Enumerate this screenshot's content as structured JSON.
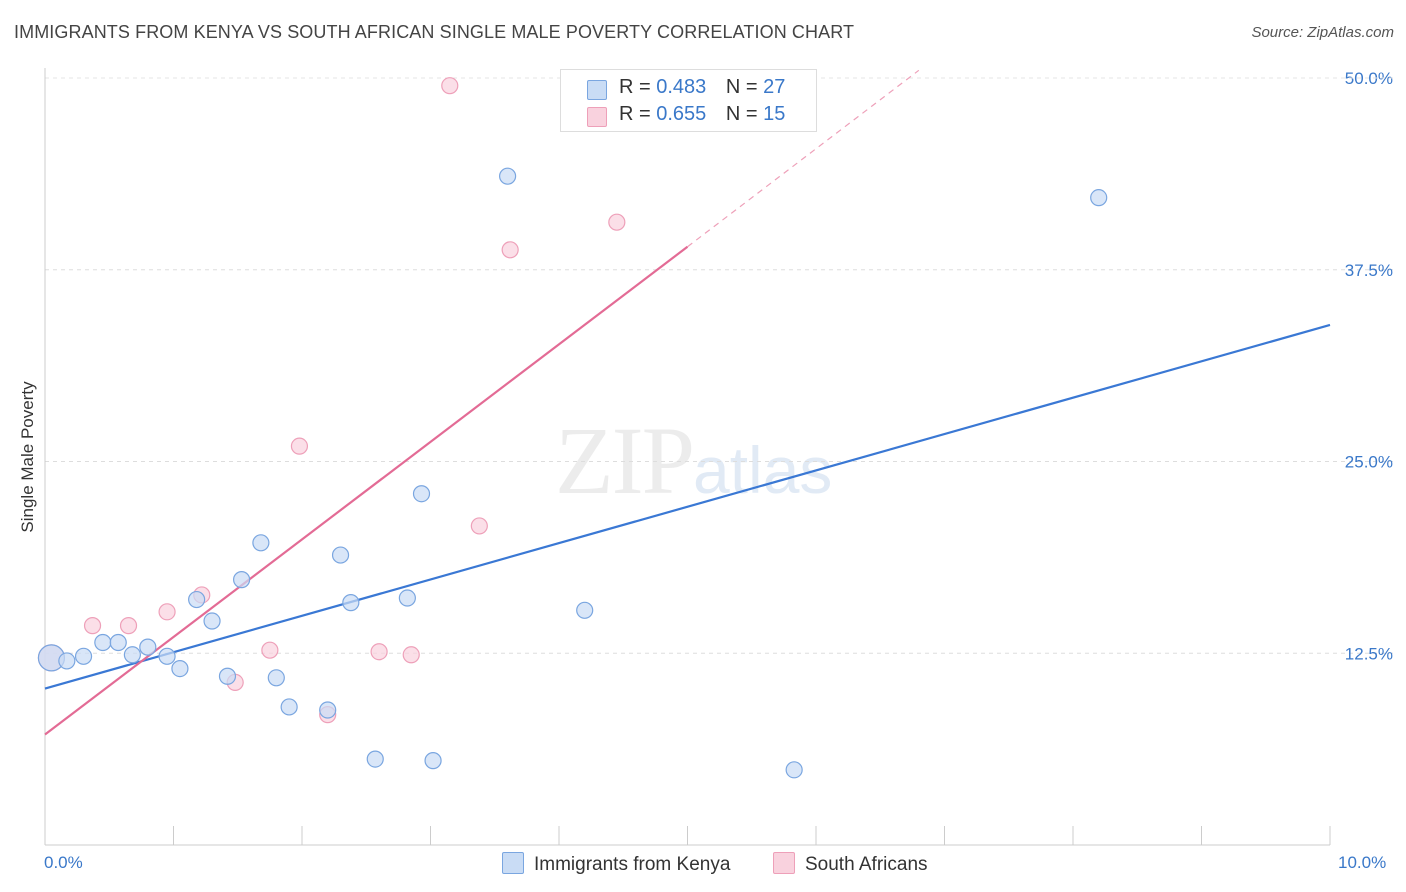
{
  "title": "IMMIGRANTS FROM KENYA VS SOUTH AFRICAN SINGLE MALE POVERTY CORRELATION CHART",
  "source": "Source: ZipAtlas.com",
  "watermark": {
    "zip": "ZIP",
    "atlas": "atlas"
  },
  "legend": {
    "r_label": "R =",
    "n_label": "N =",
    "rows": [
      {
        "r": "0.483",
        "n": "27",
        "color": "#a9c8f0"
      },
      {
        "r": "0.655",
        "n": "15",
        "color": "#f7b9cb"
      }
    ]
  },
  "bottom_legend": [
    "Immigrants from Kenya",
    "South Africans"
  ],
  "chart_data": {
    "type": "scatter",
    "ylabel": "Single Male Poverty",
    "xlabel": "",
    "xlim": [
      0,
      10
    ],
    "ylim": [
      0,
      50
    ],
    "x_tick_labels": [
      "0.0%",
      "10.0%"
    ],
    "y_ticks": [
      12.5,
      25.0,
      37.5,
      50.0
    ],
    "y_tick_labels": [
      "12.5%",
      "25.0%",
      "37.5%",
      "50.0%"
    ],
    "series": [
      {
        "name": "Immigrants from Kenya",
        "color": "#3a78d4",
        "fill": "#c9dcf5",
        "stroke": "#7aa6e0",
        "points": [
          [
            0.05,
            12.2
          ],
          [
            0.17,
            12.0
          ],
          [
            0.3,
            12.3
          ],
          [
            0.45,
            13.2
          ],
          [
            0.57,
            13.2
          ],
          [
            0.68,
            12.4
          ],
          [
            0.8,
            12.9
          ],
          [
            0.95,
            12.3
          ],
          [
            1.05,
            11.5
          ],
          [
            1.18,
            16.0
          ],
          [
            1.3,
            14.6
          ],
          [
            1.42,
            11.0
          ],
          [
            1.53,
            17.3
          ],
          [
            1.68,
            19.7
          ],
          [
            1.8,
            10.9
          ],
          [
            1.9,
            9.0
          ],
          [
            2.2,
            8.8
          ],
          [
            2.3,
            18.9
          ],
          [
            2.38,
            15.8
          ],
          [
            2.57,
            5.6
          ],
          [
            2.82,
            16.1
          ],
          [
            2.93,
            22.9
          ],
          [
            3.02,
            5.5
          ],
          [
            3.6,
            43.6
          ],
          [
            4.2,
            15.3
          ],
          [
            5.83,
            4.9
          ],
          [
            8.2,
            42.2
          ]
        ],
        "trend": [
          [
            0.0,
            10.2
          ],
          [
            10.0,
            33.9
          ]
        ]
      },
      {
        "name": "South Africans",
        "color": "#e36b95",
        "fill": "#f9d2de",
        "stroke": "#eea0b9",
        "points": [
          [
            0.05,
            12.2
          ],
          [
            0.37,
            14.3
          ],
          [
            0.65,
            14.3
          ],
          [
            0.95,
            15.2
          ],
          [
            1.22,
            16.3
          ],
          [
            1.48,
            10.6
          ],
          [
            1.75,
            12.7
          ],
          [
            1.98,
            26.0
          ],
          [
            2.2,
            8.5
          ],
          [
            2.6,
            12.6
          ],
          [
            2.85,
            12.4
          ],
          [
            3.15,
            49.5
          ],
          [
            3.38,
            20.8
          ],
          [
            3.62,
            38.8
          ],
          [
            4.45,
            40.6
          ]
        ],
        "trend": [
          [
            0.0,
            7.2
          ],
          [
            5.0,
            39.0
          ]
        ],
        "trend_dashed": [
          [
            5.0,
            39.0
          ],
          [
            6.8,
            50.5
          ]
        ]
      }
    ]
  }
}
